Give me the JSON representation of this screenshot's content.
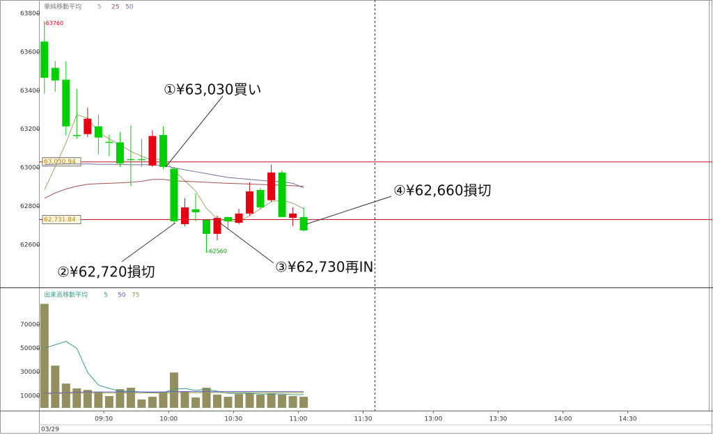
{
  "chart_data": [
    {
      "type": "candlestick",
      "legend_title": "単純移動平均",
      "ylim": [
        62380,
        63870
      ],
      "yticks": [
        62600,
        62800,
        63000,
        63200,
        63400,
        63600,
        63800
      ],
      "xlim": [
        -0.5,
        61.5
      ],
      "up_color": "#e60012",
      "down_color": "#00d000",
      "open": [
        63655,
        63518,
        63457,
        63170,
        63175,
        63215,
        63135,
        63132,
        63045,
        63045,
        63012,
        63170,
        62995,
        62708,
        62785,
        62730,
        62658,
        62745,
        62715,
        62763,
        62885,
        62832,
        62976,
        62741,
        62745
      ],
      "high": [
        63760,
        63554,
        63554,
        63410,
        63312,
        63276,
        63170,
        63185,
        63220,
        63150,
        63195,
        63215,
        63005,
        62842,
        62868,
        62730,
        62752,
        62745,
        62788,
        62925,
        62896,
        63016,
        62987,
        62795,
        62795
      ],
      "low": [
        63385,
        63395,
        63168,
        63150,
        63160,
        63070,
        63060,
        63005,
        62905,
        63005,
        63005,
        62995,
        62708,
        62698,
        62723,
        62560,
        62625,
        62680,
        62708,
        62752,
        62788,
        62824,
        62745,
        62698,
        62670
      ],
      "close": [
        63467,
        63453,
        63215,
        63165,
        63255,
        63157,
        63130,
        63023,
        63040,
        63040,
        63165,
        63005,
        62723,
        62795,
        62770,
        62658,
        62740,
        62723,
        62763,
        62878,
        62795,
        62976,
        62745,
        62763,
        62676
      ],
      "series": [
        {
          "name": "5",
          "color": "#a8a070",
          "values": [
            62885,
            63005,
            63130,
            63275,
            63258,
            63185,
            63150,
            63120,
            63085,
            63060,
            63040,
            63048,
            62987,
            62933,
            62880,
            62790,
            62735,
            62723,
            62723,
            62752,
            62788,
            62824,
            62832,
            62817,
            62788
          ]
        },
        {
          "name": "25",
          "color": "#a05050",
          "values": [
            62842,
            62870,
            62890,
            62905,
            62915,
            62918,
            62920,
            62922,
            62925,
            62930,
            62940,
            62940,
            62933,
            62930,
            62928,
            62925,
            62922,
            62920,
            62918,
            62916,
            62914,
            62912,
            62910,
            62907,
            62904
          ]
        },
        {
          "name": "50",
          "color": "#7070a0",
          "values": [
            63016,
            63018,
            63020,
            63020,
            63020,
            63018,
            63018,
            63017,
            63016,
            63016,
            63016,
            63012,
            63000,
            62990,
            62980,
            62970,
            62960,
            62950,
            62945,
            62940,
            62935,
            62930,
            62928,
            62920,
            62896
          ]
        }
      ],
      "line_color": "#c8102e",
      "price_lines": [
        {
          "value": 63030.94,
          "label": "63,030.94"
        },
        {
          "value": 62731.84,
          "label": "62,731.84"
        }
      ],
      "high_label": {
        "value": 63760,
        "label": "-63760"
      },
      "low_label": {
        "value": 62560,
        "label": "-62560"
      },
      "annotations": [
        "①¥63,030買い",
        "②¥62,720損切",
        "③¥62,730再IN",
        "④¥62,660損切"
      ]
    },
    {
      "type": "bar",
      "legend_title": "出来高移動平均",
      "values": [
        87400,
        35500,
        20400,
        16300,
        15100,
        13400,
        9900,
        15700,
        16900,
        7000,
        9300,
        13400,
        29700,
        14000,
        8700,
        16900,
        11100,
        9300,
        11600,
        12200,
        11100,
        12200,
        11100,
        9900,
        9300
      ],
      "color": "#948f5e",
      "ylim": [
        0,
        100000
      ],
      "yticks": [
        10000,
        30000,
        50000,
        70000
      ],
      "xlim": [
        -0.5,
        61.5
      ],
      "xticks": [
        {
          "value": 5.5,
          "label": "09:30"
        },
        {
          "value": 11.5,
          "label": "10:00"
        },
        {
          "value": 17.5,
          "label": "10:30"
        },
        {
          "value": 23.5,
          "label": "11:00"
        },
        {
          "value": 29.5,
          "label": "11:30"
        },
        {
          "value": 36,
          "label": "13:00"
        },
        {
          "value": 42,
          "label": "13:30"
        },
        {
          "value": 48,
          "label": "14:00"
        },
        {
          "value": 54,
          "label": "14:30"
        }
      ],
      "date": "03/29",
      "series": [
        {
          "name": "5",
          "color": "#3a9a8a",
          "values": [
            50100,
            53000,
            55900,
            50100,
            29700,
            19200,
            16300,
            14000,
            14000,
            13400,
            12800,
            12800,
            15700,
            16300,
            14600,
            15700,
            14000,
            12200,
            12200,
            12200,
            11600,
            11600,
            11600,
            11100,
            11100
          ]
        },
        {
          "name": "50",
          "color": "#6060c0",
          "values": [
            12200,
            12500,
            12800,
            13100,
            13400,
            13400,
            13400,
            13400,
            13400,
            13400,
            13400,
            13400,
            13700,
            13700,
            13700,
            13700,
            13700,
            13700,
            13700,
            13700,
            13700,
            13700,
            13700,
            13700,
            13700
          ]
        },
        {
          "name": "75",
          "color": "#9a9a5a",
          "values": [
            11600,
            11900,
            12200,
            12200,
            12500,
            12500,
            12500,
            12500,
            12500,
            12500,
            12500,
            12500,
            12800,
            12800,
            12800,
            12800,
            12800,
            12800,
            12800,
            12800,
            12800,
            12800,
            12800,
            12800,
            12800
          ]
        }
      ]
    }
  ]
}
